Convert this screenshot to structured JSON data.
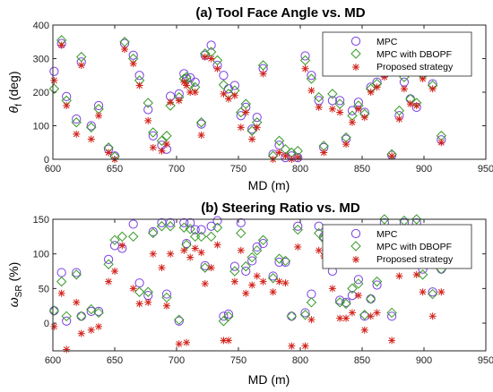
{
  "colors": {
    "mpc": "#7b3fe4",
    "mpc_dbopf": "#3a9a2a",
    "proposed": "#d2221a",
    "axis": "#262626",
    "legend_border": "#262626"
  },
  "chart_data": [
    {
      "type": "scatter",
      "title": "(a) Tool Face Angle vs. MD",
      "xlabel": "MD (m)",
      "ylabel": "θf (deg)",
      "ylabel_main": "θ",
      "ylabel_sub": "f",
      "ylabel_unit": " (deg)",
      "xlim": [
        600,
        950
      ],
      "ylim": [
        0,
        400
      ],
      "xticks": [
        600,
        650,
        700,
        750,
        800,
        850,
        900,
        950
      ],
      "yticks": [
        0,
        100,
        200,
        300,
        400
      ],
      "grid": false,
      "legend_position": "top-right",
      "series": [
        {
          "name": "MPC",
          "marker": "circle",
          "x": [
            601,
            607,
            611,
            619,
            623,
            631,
            637,
            645,
            650,
            658,
            665,
            670,
            677,
            681,
            688,
            692,
            695,
            702,
            706,
            708,
            711,
            715,
            720,
            723,
            728,
            733,
            738,
            742,
            747,
            752,
            756,
            761,
            765,
            770,
            778,
            783,
            788,
            793,
            798,
            804,
            809,
            815,
            819,
            826,
            832,
            837,
            842,
            847,
            852,
            857,
            862,
            868,
            874,
            880,
            884,
            889,
            894,
            899,
            907,
            914
          ],
          "y": [
            262,
            345,
            187,
            120,
            290,
            100,
            160,
            30,
            10,
            345,
            310,
            250,
            148,
            70,
            42,
            30,
            188,
            195,
            255,
            240,
            243,
            230,
            105,
            310,
            340,
            280,
            250,
            210,
            220,
            130,
            155,
            90,
            125,
            270,
            15,
            42,
            5,
            10,
            5,
            308,
            250,
            175,
            35,
            175,
            175,
            60,
            145,
            170,
            140,
            215,
            230,
            255,
            12,
            130,
            230,
            180,
            155,
            260,
            225,
            58
          ]
        },
        {
          "name": "MPC with DBOPF",
          "marker": "diamond",
          "x": [
            601,
            607,
            611,
            619,
            623,
            631,
            637,
            645,
            650,
            658,
            665,
            670,
            677,
            681,
            688,
            692,
            695,
            702,
            706,
            708,
            711,
            715,
            720,
            723,
            728,
            733,
            738,
            742,
            747,
            752,
            756,
            761,
            765,
            770,
            778,
            783,
            788,
            793,
            798,
            804,
            809,
            815,
            819,
            826,
            832,
            837,
            842,
            847,
            852,
            857,
            862,
            868,
            874,
            880,
            884,
            889,
            894,
            899,
            907,
            914
          ],
          "y": [
            210,
            355,
            175,
            110,
            305,
            95,
            150,
            35,
            8,
            350,
            300,
            235,
            168,
            80,
            55,
            70,
            160,
            185,
            240,
            245,
            222,
            215,
            110,
            315,
            320,
            295,
            222,
            195,
            205,
            140,
            165,
            85,
            110,
            280,
            10,
            55,
            30,
            20,
            25,
            295,
            240,
            185,
            40,
            195,
            165,
            65,
            130,
            160,
            135,
            210,
            225,
            260,
            15,
            145,
            245,
            180,
            168,
            250,
            220,
            70
          ]
        },
        {
          "name": "Proposed strategy",
          "marker": "asterisk",
          "x": [
            601,
            607,
            611,
            619,
            623,
            631,
            637,
            645,
            650,
            658,
            665,
            670,
            677,
            681,
            688,
            692,
            695,
            702,
            706,
            708,
            711,
            715,
            720,
            723,
            728,
            733,
            738,
            742,
            747,
            752,
            756,
            761,
            765,
            770,
            778,
            783,
            788,
            793,
            798,
            804,
            809,
            815,
            819,
            826,
            832,
            837,
            842,
            847,
            852,
            857,
            862,
            868,
            874,
            880,
            884,
            889,
            894,
            899,
            907,
            914
          ],
          "y": [
            235,
            340,
            160,
            75,
            280,
            60,
            130,
            20,
            0,
            328,
            285,
            220,
            115,
            35,
            25,
            45,
            170,
            175,
            230,
            220,
            200,
            200,
            72,
            305,
            300,
            270,
            195,
            180,
            190,
            95,
            140,
            60,
            95,
            255,
            0,
            20,
            10,
            0,
            5,
            270,
            205,
            155,
            20,
            150,
            140,
            45,
            110,
            150,
            125,
            200,
            215,
            245,
            10,
            120,
            210,
            165,
            160,
            240,
            210,
            50
          ]
        }
      ]
    },
    {
      "type": "scatter",
      "title": "(b) Steering Ratio vs. MD",
      "xlabel": "MD (m)",
      "ylabel": "ωSR (%)",
      "ylabel_main": "ω",
      "ylabel_sub": "SR",
      "ylabel_unit": " (%)",
      "xlim": [
        600,
        950
      ],
      "ylim": [
        -40,
        150
      ],
      "xticks": [
        600,
        650,
        700,
        750,
        800,
        850,
        900,
        950
      ],
      "yticks": [
        0,
        50,
        100,
        150
      ],
      "grid": false,
      "legend_position": "top-right",
      "series": [
        {
          "name": "MPC",
          "marker": "circle",
          "x": [
            601,
            607,
            611,
            619,
            623,
            631,
            637,
            645,
            650,
            656,
            665,
            670,
            677,
            681,
            688,
            692,
            695,
            702,
            706,
            708,
            711,
            715,
            720,
            723,
            728,
            733,
            738,
            742,
            747,
            752,
            756,
            761,
            765,
            770,
            778,
            783,
            788,
            793,
            798,
            804,
            809,
            815,
            819,
            826,
            832,
            837,
            842,
            847,
            852,
            857,
            862,
            868,
            874,
            880,
            884,
            889,
            894,
            899,
            907,
            914
          ],
          "y": [
            18,
            73,
            3,
            73,
            10,
            17,
            17,
            92,
            112,
            108,
            143,
            58,
            40,
            132,
            145,
            42,
            145,
            3,
            145,
            115,
            145,
            135,
            135,
            83,
            140,
            148,
            10,
            13,
            82,
            145,
            75,
            90,
            110,
            115,
            68,
            88,
            88,
            10,
            140,
            15,
            42,
            140,
            125,
            75,
            33,
            30,
            40,
            63,
            10,
            35,
            55,
            145,
            10,
            110,
            145,
            125,
            145,
            78,
            45,
            78
          ]
        },
        {
          "name": "MPC with DBOPF",
          "marker": "diamond",
          "x": [
            601,
            607,
            611,
            619,
            623,
            631,
            637,
            645,
            650,
            656,
            665,
            670,
            677,
            681,
            688,
            692,
            695,
            702,
            706,
            708,
            711,
            715,
            720,
            723,
            728,
            733,
            738,
            742,
            747,
            752,
            756,
            761,
            765,
            770,
            778,
            783,
            788,
            793,
            798,
            804,
            809,
            815,
            819,
            826,
            832,
            837,
            842,
            847,
            852,
            857,
            862,
            868,
            874,
            880,
            884,
            889,
            894,
            899,
            907,
            914
          ],
          "y": [
            18,
            60,
            10,
            70,
            10,
            20,
            15,
            85,
            120,
            125,
            125,
            45,
            45,
            130,
            140,
            37,
            140,
            5,
            138,
            113,
            136,
            125,
            125,
            80,
            125,
            138,
            3,
            10,
            75,
            130,
            82,
            95,
            105,
            120,
            65,
            93,
            90,
            10,
            135,
            12,
            30,
            130,
            122,
            88,
            30,
            28,
            50,
            57,
            12,
            35,
            60,
            150,
            15,
            100,
            148,
            118,
            150,
            70,
            42,
            78
          ]
        },
        {
          "name": "Proposed strategy",
          "marker": "asterisk",
          "x": [
            601,
            607,
            611,
            619,
            623,
            631,
            637,
            645,
            650,
            656,
            665,
            670,
            677,
            681,
            688,
            692,
            695,
            702,
            706,
            708,
            711,
            715,
            720,
            723,
            728,
            733,
            738,
            742,
            747,
            752,
            756,
            761,
            765,
            770,
            778,
            783,
            788,
            793,
            798,
            804,
            809,
            815,
            819,
            826,
            832,
            837,
            842,
            847,
            852,
            857,
            862,
            868,
            874,
            880,
            884,
            889,
            894,
            899,
            907,
            914
          ],
          "y": [
            -5,
            43,
            -38,
            30,
            -15,
            -10,
            -5,
            60,
            75,
            112,
            50,
            28,
            30,
            100,
            80,
            25,
            100,
            -30,
            105,
            -28,
            95,
            108,
            102,
            57,
            80,
            113,
            -25,
            -25,
            60,
            105,
            43,
            55,
            68,
            60,
            45,
            60,
            58,
            -33,
            110,
            -33,
            5,
            105,
            97,
            50,
            7,
            7,
            15,
            40,
            -10,
            10,
            15,
            112,
            -25,
            68,
            115,
            95,
            70,
            45,
            10,
            45
          ]
        }
      ]
    }
  ]
}
